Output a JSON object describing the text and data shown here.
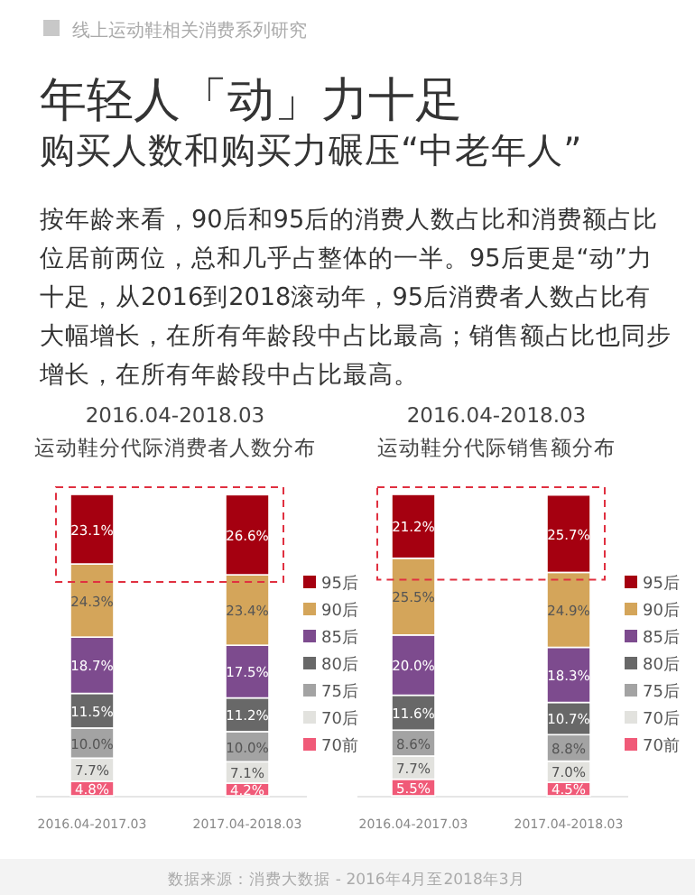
{
  "chart_data": [
    {
      "type": "other",
      "title": "年轻人「动」力十足",
      "subtitle": "购买人数和购买力碾压“中老年人”",
      "annotations": [
        "线上运动鞋相关消费系列研究",
        "按年龄来看，90后和95后的消费人数占比和消费额占比位居前两位，总和几乎占整体的一半。95后更是“动”力十足，从2016到2018滚动年，95后消费者人数占比有大幅增长，在所有年龄段中占比最高；销售额占比也同步增长，在所有年龄段中占比最高。"
      ]
    },
    {
      "type": "bar",
      "subtitle": "2016.04-2018.03",
      "title": "运动鞋分代际消费者人数分布",
      "categories": [
        "2016.04-2017.03",
        "2017.04-2018.03"
      ],
      "stacked": true,
      "legend": "right",
      "series": [
        {
          "name": "70前",
          "color": "#f05a78",
          "values": [
            4.8,
            4.2
          ],
          "value_labels": [
            "4.8%",
            "4.2%"
          ]
        },
        {
          "name": "70后",
          "color": "#e2e2de",
          "values": [
            7.7,
            7.1
          ],
          "value_labels": [
            "7.7%",
            "7.1%"
          ]
        },
        {
          "name": "75后",
          "color": "#a3a3a3",
          "values": [
            10.0,
            10.0
          ],
          "value_labels": [
            "10.0%",
            "10.0%"
          ]
        },
        {
          "name": "80后",
          "color": "#686868",
          "values": [
            11.5,
            11.2
          ],
          "value_labels": [
            "11.5%",
            "11.2%"
          ]
        },
        {
          "name": "85后",
          "color": "#7d4b8e",
          "values": [
            18.7,
            17.5
          ],
          "value_labels": [
            "18.7%",
            "17.5%"
          ]
        },
        {
          "name": "90后",
          "color": "#d4a55a",
          "values": [
            24.3,
            23.4
          ],
          "value_labels": [
            "24.3%",
            "23.4%"
          ]
        },
        {
          "name": "95后",
          "color": "#a50010",
          "values": [
            23.1,
            26.6
          ],
          "value_labels": [
            "23.1%",
            "26.6%"
          ]
        }
      ]
    },
    {
      "type": "bar",
      "subtitle": "2016.04-2018.03",
      "title": "运动鞋分代际销售额分布",
      "categories": [
        "2016.04-2017.03",
        "2017.04-2018.03"
      ],
      "stacked": true,
      "legend": "right",
      "annotations": [
        "数据来源：消费大数据 - 2016年4月至2018年3月"
      ],
      "series": [
        {
          "name": "70前",
          "color": "#f05a78",
          "values": [
            5.5,
            4.5
          ],
          "value_labels": [
            "5.5%",
            "4.5%"
          ]
        },
        {
          "name": "70后",
          "color": "#e2e2de",
          "values": [
            7.7,
            7.0
          ],
          "value_labels": [
            "7.7%",
            "7.0%"
          ]
        },
        {
          "name": "75后",
          "color": "#a3a3a3",
          "values": [
            8.6,
            8.8
          ],
          "value_labels": [
            "8.6%",
            "8.8%"
          ]
        },
        {
          "name": "80后",
          "color": "#686868",
          "values": [
            11.6,
            10.7
          ],
          "value_labels": [
            "11.6%",
            "10.7%"
          ]
        },
        {
          "name": "85后",
          "color": "#7d4b8e",
          "values": [
            20.0,
            18.3
          ],
          "value_labels": [
            "20.0%",
            "18.3%"
          ]
        },
        {
          "name": "90后",
          "color": "#d4a55a",
          "values": [
            25.5,
            24.9
          ],
          "value_labels": [
            "25.5%",
            "24.9%"
          ]
        },
        {
          "name": "95后",
          "color": "#a50010",
          "values": [
            21.2,
            25.7
          ],
          "value_labels": [
            "21.2%",
            "25.7%"
          ]
        }
      ]
    }
  ]
}
